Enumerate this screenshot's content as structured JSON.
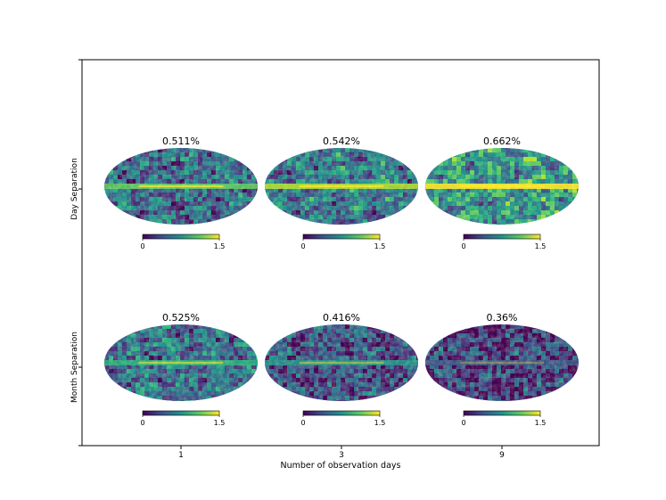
{
  "chart_data": {
    "type": "heatmap",
    "projection": "mollweide",
    "xlabel": "Number of observation days",
    "x_ticks": [
      "1",
      "3",
      "9"
    ],
    "row_labels": [
      "Day Separation",
      "Month Separation"
    ],
    "grid": false,
    "colormap": "viridis",
    "colorbar": {
      "range": [
        0,
        1.5
      ],
      "tick_labels": [
        "0",
        "1.5"
      ]
    },
    "panels": [
      {
        "row": "Day Separation",
        "days": "1",
        "title": "0.511%"
      },
      {
        "row": "Day Separation",
        "days": "3",
        "title": "0.542%"
      },
      {
        "row": "Day Separation",
        "days": "9",
        "title": "0.662%"
      },
      {
        "row": "Month Separation",
        "days": "1",
        "title": "0.525%"
      },
      {
        "row": "Month Separation",
        "days": "3",
        "title": "0.416%"
      },
      {
        "row": "Month Separation",
        "days": "9",
        "title": "0.36%"
      }
    ]
  }
}
